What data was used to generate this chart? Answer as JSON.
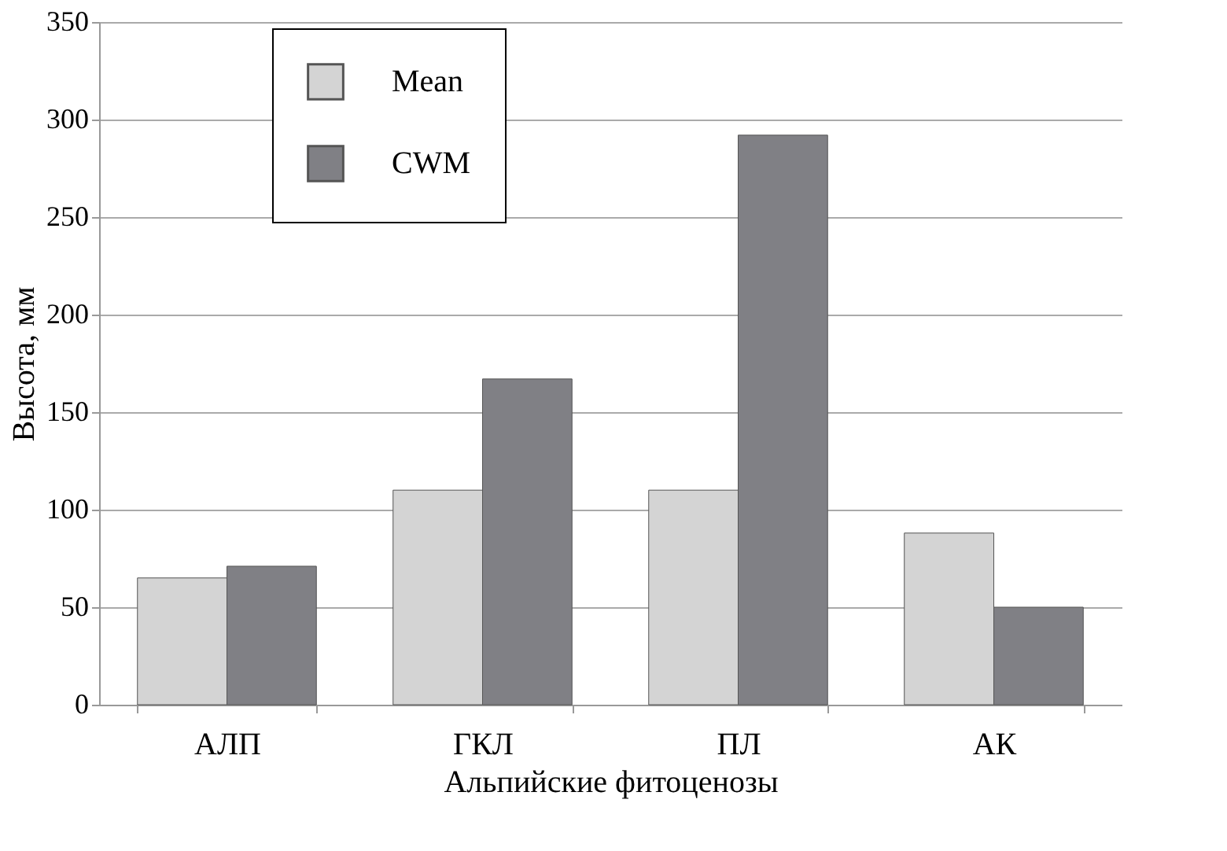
{
  "chart_data": {
    "type": "bar",
    "xlabel": "Альпийские фитоценозы",
    "ylabel": "Высота, мм",
    "categories": [
      "АЛП",
      "ГКЛ",
      "ПЛ",
      "АК"
    ],
    "series": [
      {
        "name": "Mean",
        "color": "#d4d4d4",
        "values": [
          65,
          110,
          110,
          88
        ]
      },
      {
        "name": "CWM",
        "color": "#808085",
        "values": [
          71,
          167,
          292,
          50
        ]
      }
    ],
    "ylim": [
      0,
      350
    ],
    "yticks": [
      0,
      50,
      100,
      150,
      200,
      250,
      300,
      350
    ],
    "grid": "y",
    "legend": "top left"
  }
}
